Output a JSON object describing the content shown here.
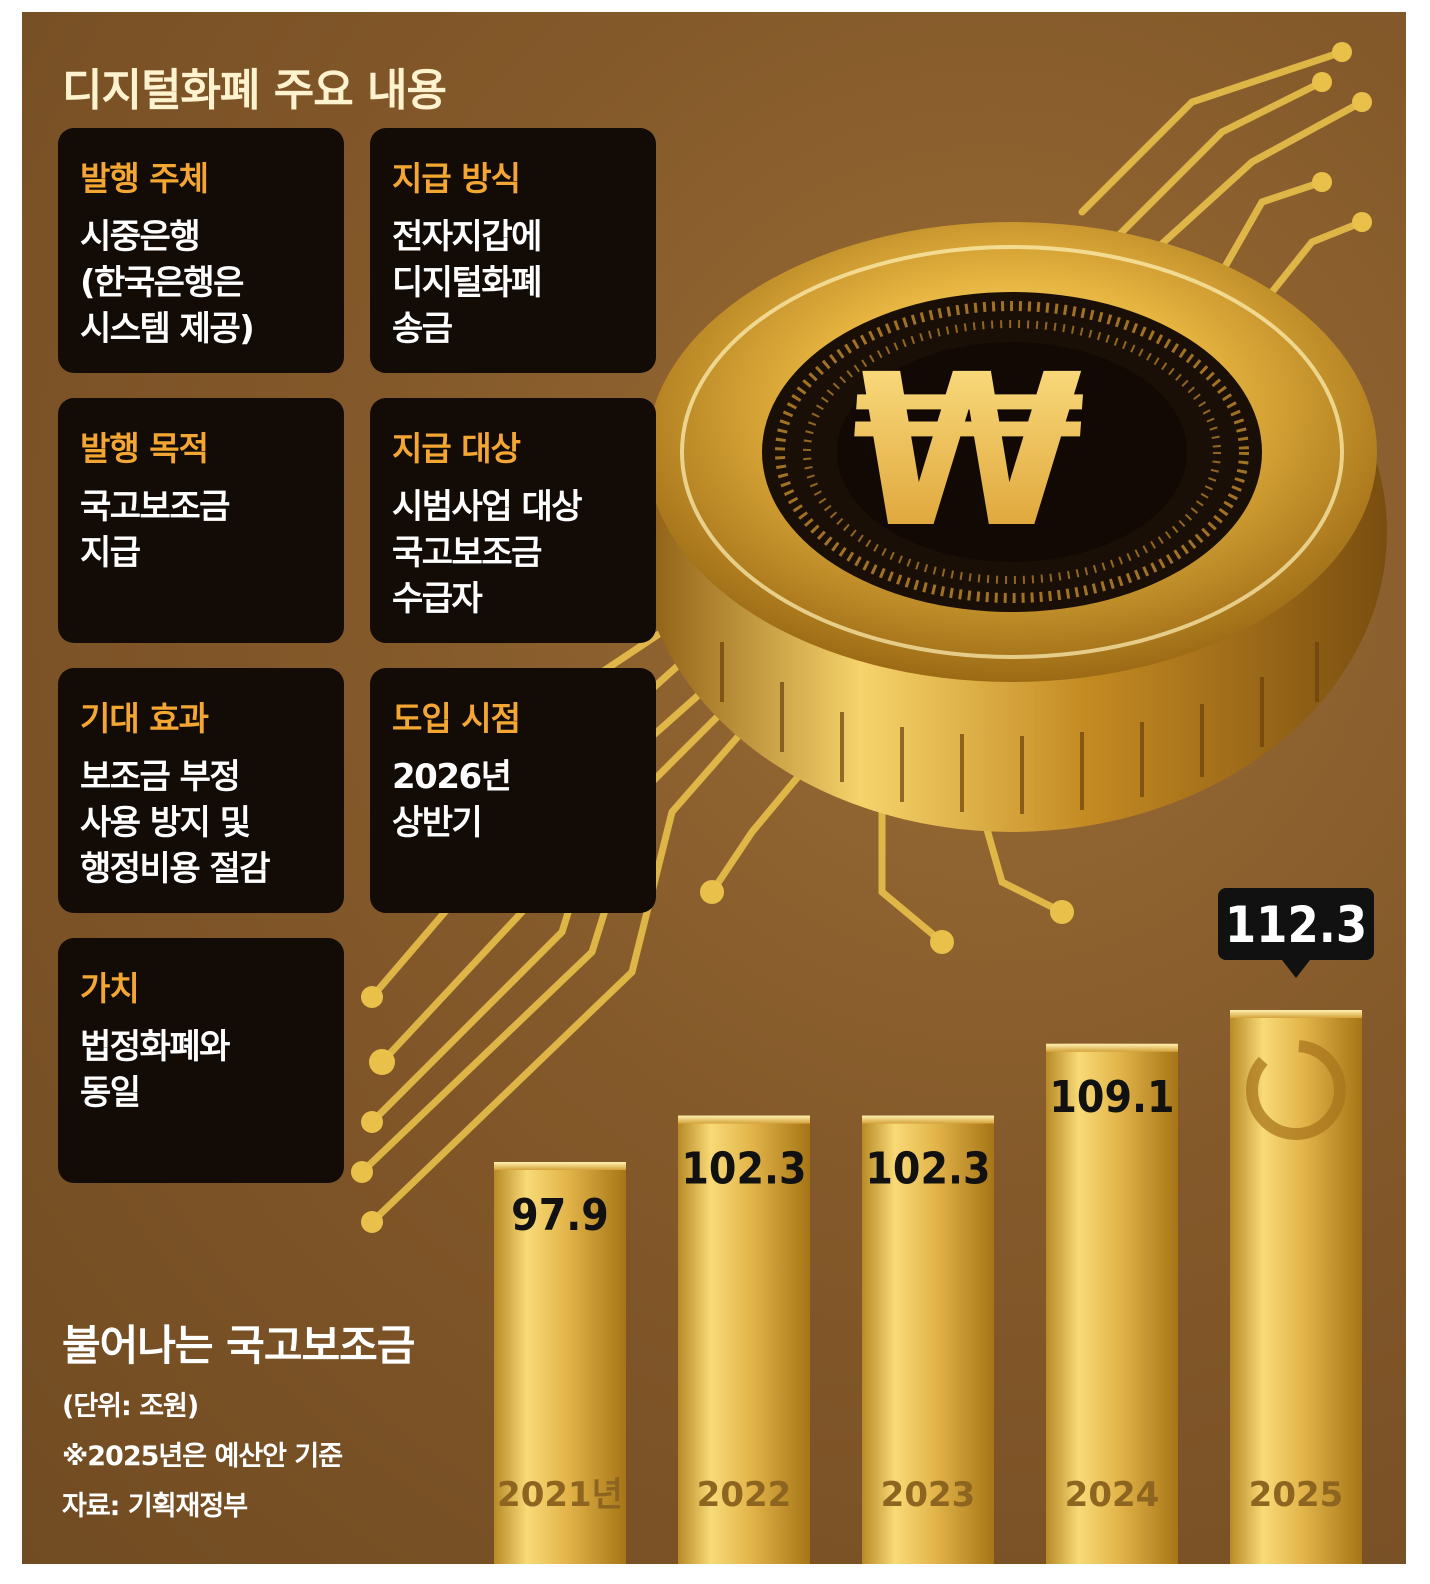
{
  "main_title": "디지털화폐 주요 내용",
  "cards": [
    {
      "title": "발행 주체",
      "lines": [
        "시중은행",
        "(한국은행은",
        "시스템 제공)"
      ]
    },
    {
      "title": "지급 방식",
      "lines": [
        "전자지갑에",
        "디지털화폐",
        "송금"
      ]
    },
    {
      "title": "발행 목적",
      "lines": [
        "국고보조금",
        "지급"
      ]
    },
    {
      "title": "지급 대상",
      "lines": [
        "시범사업 대상",
        "국고보조금",
        "수급자"
      ]
    },
    {
      "title": "기대 효과",
      "lines": [
        "보조금 부정",
        "사용 방지 및",
        "행정비용 절감"
      ]
    },
    {
      "title": "도입 시점",
      "lines": [
        "2026년",
        "상반기"
      ]
    },
    {
      "title": "가치",
      "lines": [
        "법정화폐와",
        "동일"
      ]
    }
  ],
  "coin": {
    "symbol": "₩",
    "icon": "won-coin-icon"
  },
  "chart_data": {
    "type": "bar",
    "title": "불어나는 국고보조금",
    "unit_note": "(단위: 조원)",
    "note": "※2025년은 예산안 기준",
    "source": "자료: 기획재정부",
    "categories": [
      "2021년",
      "2022",
      "2023",
      "2024",
      "2025"
    ],
    "values": [
      97.9,
      102.3,
      102.3,
      109.1,
      112.3
    ],
    "value_labels": [
      "97.9",
      "102.3",
      "102.3",
      "109.1",
      "112.3"
    ],
    "highlight_index": 4,
    "ylim": [
      80,
      115
    ],
    "grid": false,
    "legend": "none"
  },
  "colors": {
    "background": "#84592a",
    "card": "#120b06",
    "card_title": "#f4a633",
    "bar_gold": "#e2b748",
    "label_dark": "#111111",
    "callout": "#111111"
  }
}
